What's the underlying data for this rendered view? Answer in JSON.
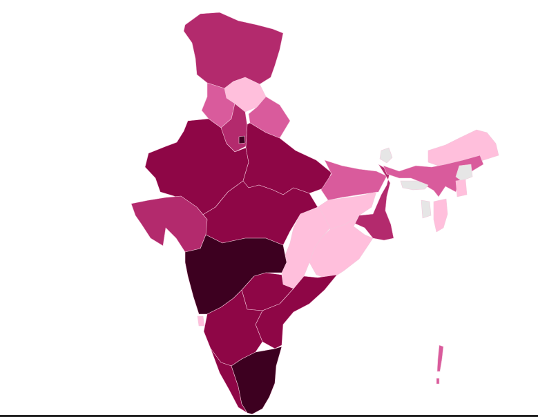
{
  "palette": {
    "level_5": "#3d0020",
    "level_4": "#8e0646",
    "level_3": "#b32a6d",
    "level_2": "#d95b9c",
    "level_1": "#ffbfdc",
    "no_data": "#e6e6e6",
    "border": "#f3c9dc",
    "background": "#ffffff"
  },
  "map": {
    "type": "choropleth",
    "subject": "India states",
    "regions": [
      {
        "id": "jammu-kashmir",
        "level": "level_3"
      },
      {
        "id": "himachal-pradesh",
        "level": "level_1"
      },
      {
        "id": "punjab",
        "level": "level_2"
      },
      {
        "id": "uttarakhand",
        "level": "level_2"
      },
      {
        "id": "haryana",
        "level": "level_3"
      },
      {
        "id": "delhi",
        "level": "level_5"
      },
      {
        "id": "rajasthan",
        "level": "level_4"
      },
      {
        "id": "uttar-pradesh",
        "level": "level_4"
      },
      {
        "id": "madhya-pradesh",
        "level": "level_4"
      },
      {
        "id": "gujarat",
        "level": "level_3"
      },
      {
        "id": "bihar",
        "level": "level_2"
      },
      {
        "id": "jharkhand",
        "level": "level_1"
      },
      {
        "id": "west-bengal",
        "level": "level_3"
      },
      {
        "id": "odisha",
        "level": "level_1"
      },
      {
        "id": "chhattisgarh",
        "level": "level_1"
      },
      {
        "id": "maharashtra",
        "level": "level_5"
      },
      {
        "id": "telangana",
        "level": "level_4"
      },
      {
        "id": "andhra-pradesh",
        "level": "level_4"
      },
      {
        "id": "karnataka",
        "level": "level_4"
      },
      {
        "id": "goa",
        "level": "level_1"
      },
      {
        "id": "kerala",
        "level": "level_4"
      },
      {
        "id": "tamil-nadu",
        "level": "level_5"
      },
      {
        "id": "sikkim",
        "level": "no_data"
      },
      {
        "id": "arunachal-pradesh",
        "level": "level_1"
      },
      {
        "id": "assam",
        "level": "level_2"
      },
      {
        "id": "meghalaya",
        "level": "no_data"
      },
      {
        "id": "nagaland",
        "level": "no_data"
      },
      {
        "id": "manipur",
        "level": "level_1"
      },
      {
        "id": "tripura",
        "level": "no_data"
      },
      {
        "id": "mizoram",
        "level": "level_1"
      },
      {
        "id": "andaman-nicobar",
        "level": "level_2"
      }
    ]
  }
}
